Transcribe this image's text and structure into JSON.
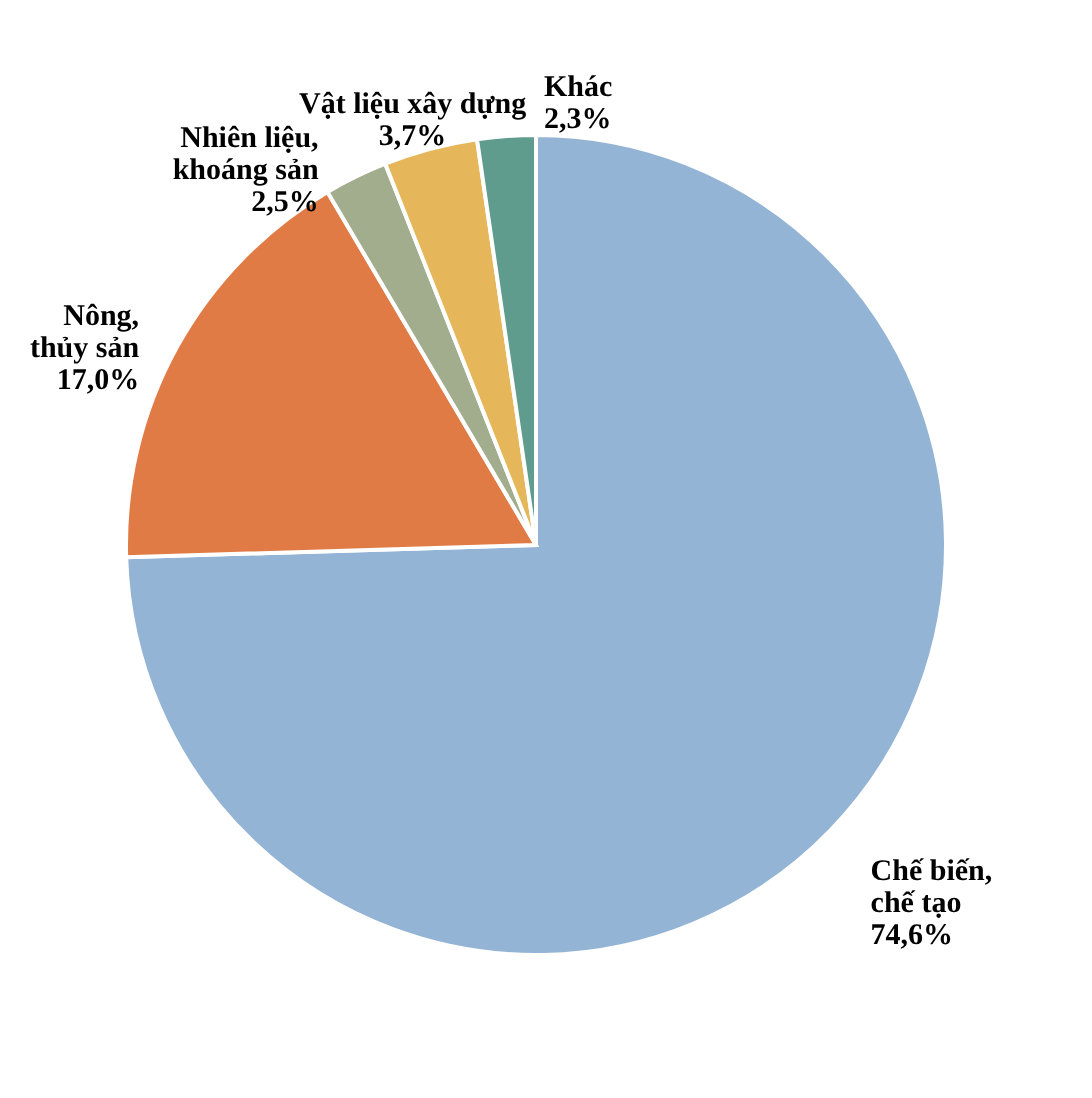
{
  "chart_data": {
    "type": "pie",
    "categories": [
      "Chế biến, chế tạo",
      "Nông, thủy sản",
      "Nhiên liệu, khoáng sản",
      "Vật liệu xây dựng",
      "Khác"
    ],
    "values": [
      74.6,
      17.0,
      2.5,
      3.7,
      2.3
    ],
    "value_labels": [
      "74,6%",
      "17,0%",
      "2,5%",
      "3,7%",
      "2,3%"
    ],
    "colors": [
      "#94b4d6",
      "#e07b45",
      "#a2ad8e",
      "#e5b75a",
      "#5f9c8e"
    ]
  }
}
